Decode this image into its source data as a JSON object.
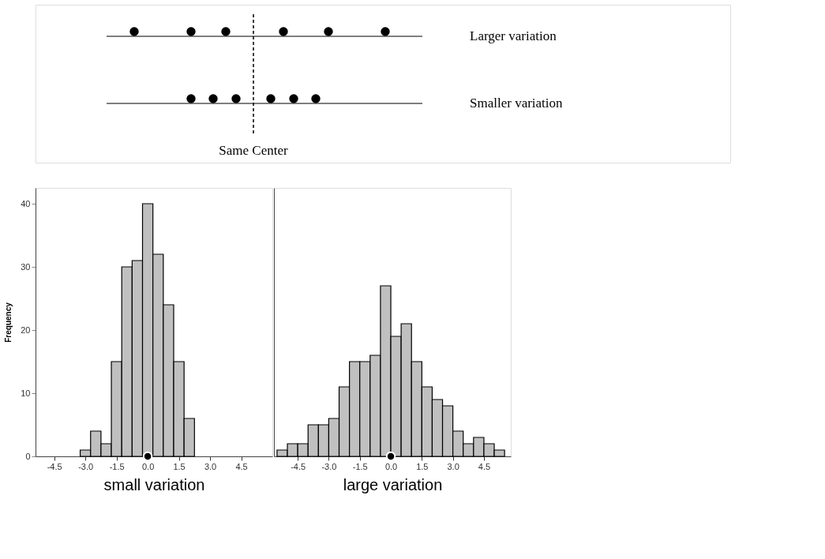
{
  "chart_data": [
    {
      "type": "other",
      "annotations": [
        "Larger variation",
        "Smaller variation",
        "Same Center"
      ]
    },
    {
      "type": "histogram",
      "xlabel": "small variation",
      "ylabel": "Frequency",
      "bins": [
        -3.25,
        -2.75,
        -2.25,
        -1.75,
        -1.25,
        -0.75,
        -0.25,
        0.25,
        0.75,
        1.25,
        1.75,
        2.25
      ],
      "values": [
        1,
        4,
        2,
        15,
        30,
        31,
        40,
        32,
        24,
        15,
        6
      ],
      "color": "#c0c0c0",
      "xlim": [
        -5.4,
        6.0
      ],
      "xticks": [
        {
          "value": -4.5,
          "label": "-4.5"
        },
        {
          "value": -3,
          "label": "-3.0"
        },
        {
          "value": -1.5,
          "label": "-1.5"
        },
        {
          "value": 0,
          "label": "0.0"
        },
        {
          "value": 1.5,
          "label": "1.5"
        },
        {
          "value": 3,
          "label": "3.0"
        },
        {
          "value": 4.5,
          "label": "4.5"
        }
      ],
      "ylim": [
        0,
        42.5
      ],
      "yticks": [
        0,
        10,
        20,
        30,
        40
      ],
      "grid": false,
      "series": [
        {
          "type": "scatter",
          "x": [
            0
          ],
          "values": [
            0
          ],
          "color": "#000000"
        }
      ]
    },
    {
      "type": "histogram",
      "xlabel": "large variation",
      "tick_labels": "x",
      "bins": [
        -5.5,
        -5.0,
        -4.5,
        -4.0,
        -3.5,
        -3.0,
        -2.5,
        -2.0,
        -1.5,
        -1.0,
        -0.5,
        0.0,
        0.5,
        1.0,
        1.5,
        2.0,
        2.5,
        3.0,
        3.5,
        4.0,
        4.5,
        5.0,
        5.5
      ],
      "values": [
        1,
        2,
        2,
        5,
        5,
        6,
        11,
        15,
        15,
        16,
        27,
        19,
        21,
        15,
        11,
        9,
        8,
        4,
        2,
        3,
        2,
        1
      ],
      "color": "#c0c0c0",
      "xlim": [
        -5.65,
        5.8
      ],
      "xticks": [
        {
          "value": -4.5,
          "label": "-4.5"
        },
        {
          "value": -3,
          "label": "-3.0"
        },
        {
          "value": -1.5,
          "label": "-1.5"
        },
        {
          "value": 0,
          "label": "0.0"
        },
        {
          "value": 1.5,
          "label": "1.5"
        },
        {
          "value": 3,
          "label": "3.0"
        },
        {
          "value": 4.5,
          "label": "4.5"
        }
      ],
      "ylim": [
        0,
        42.5
      ],
      "yticks": [
        0,
        10,
        20,
        30,
        40
      ],
      "grid": false,
      "series": [
        {
          "type": "scatter",
          "x": [
            0
          ],
          "values": [
            0
          ],
          "color": "#000000"
        }
      ]
    }
  ]
}
